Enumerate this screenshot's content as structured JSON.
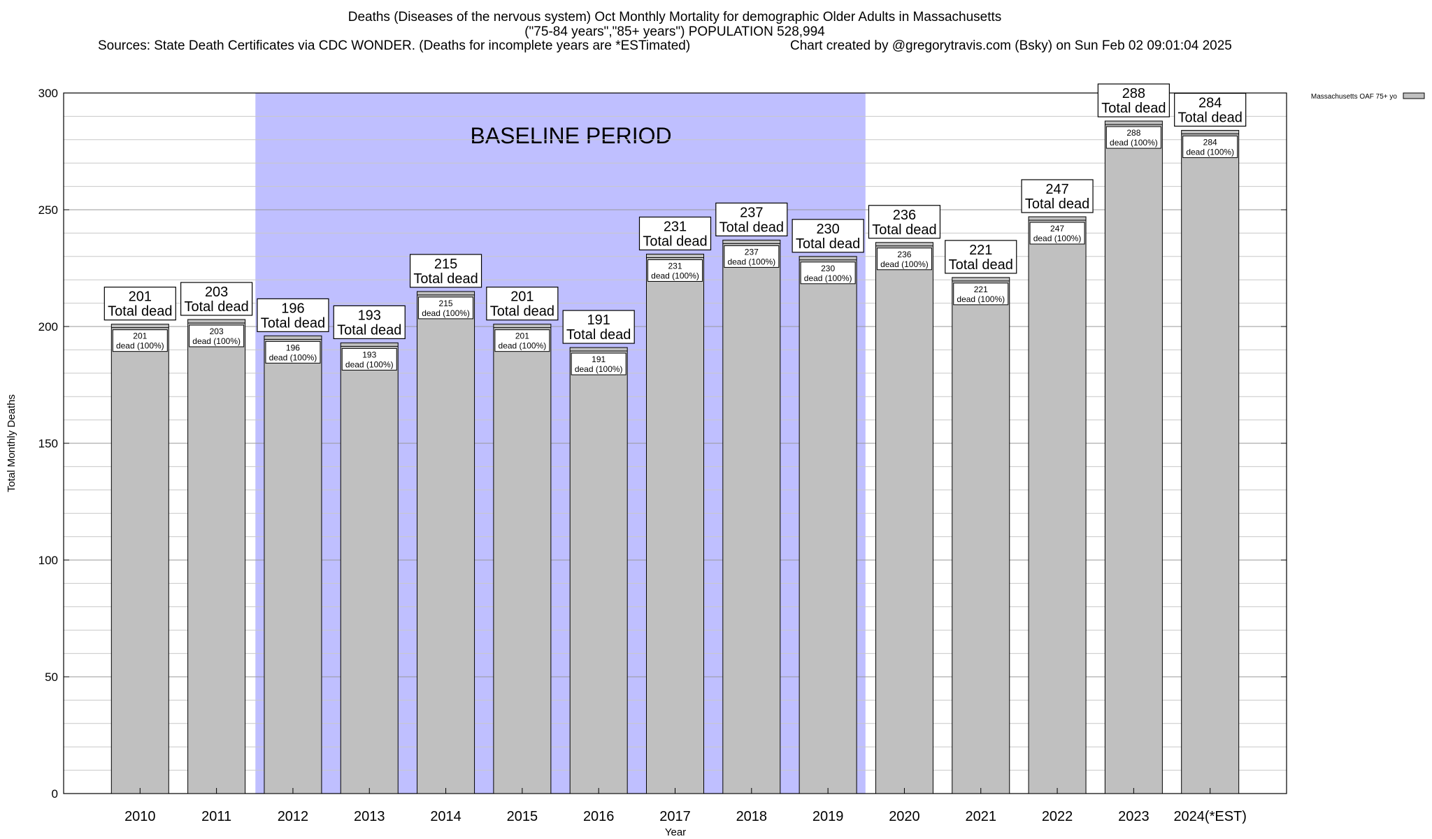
{
  "header": {
    "title_line1": "Deaths (Diseases of the nervous system) Oct Monthly Mortality for demographic Older Adults in Massachusetts",
    "title_line2": "(\"75-84 years\",\"85+ years\") POPULATION 528,994",
    "sources": "Sources: State Death Certificates via CDC WONDER. (Deaths for incomplete years are *ESTimated)",
    "credit": "Chart created by @gregorytravis.com (Bsky) on Sun Feb 02 09:01:04 2025"
  },
  "chart_data": {
    "type": "bar",
    "categories": [
      "2010",
      "2011",
      "2012",
      "2013",
      "2014",
      "2015",
      "2016",
      "2017",
      "2018",
      "2019",
      "2020",
      "2021",
      "2022",
      "2023",
      "2024(*EST)"
    ],
    "series": [
      {
        "name": "Massachusetts OAF 75+ yo",
        "values": [
          201,
          203,
          196,
          193,
          215,
          201,
          191,
          231,
          237,
          230,
          236,
          221,
          247,
          288,
          284
        ],
        "color": "#c0c0c0"
      }
    ],
    "xlabel": "Year",
    "ylabel": "Total Monthly Deaths",
    "ylim": [
      0,
      300
    ],
    "yticks": [
      0,
      50,
      100,
      150,
      200,
      250,
      300
    ],
    "grid": true,
    "legend_position": "top-right",
    "total_label_suffix": "Total dead",
    "inner_label_suffix": "dead (100%)",
    "baseline": {
      "label": "BASELINE PERIOD",
      "from": "2012",
      "to": "2019",
      "color": "#bfbfff"
    }
  }
}
